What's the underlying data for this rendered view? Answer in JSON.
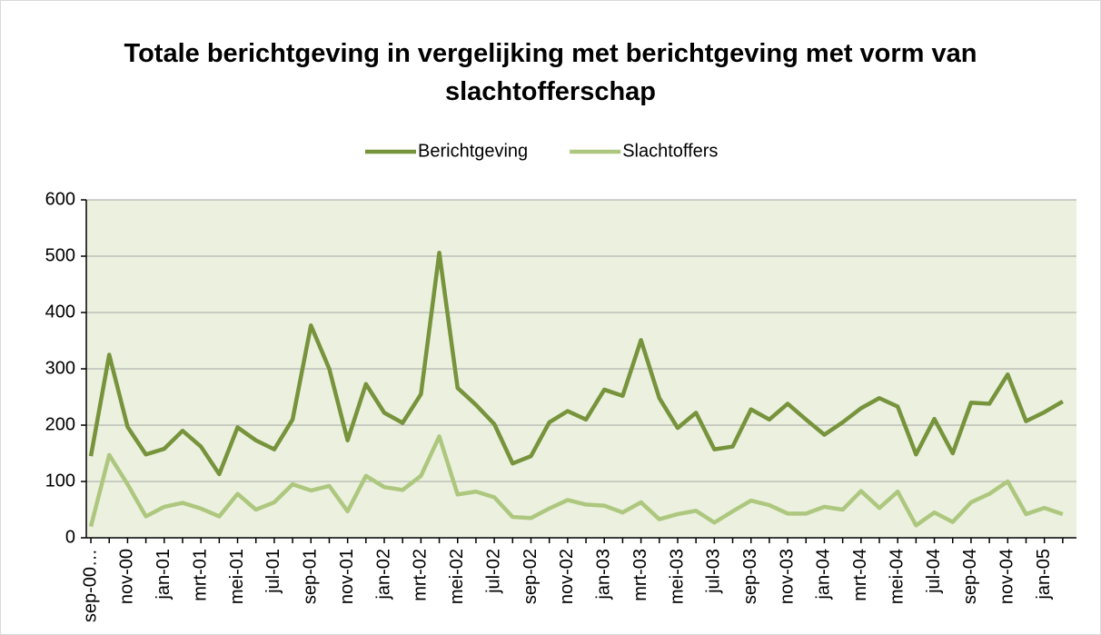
{
  "chart_data": {
    "type": "line",
    "title": "Totale berichtgeving in vergelijking met berichtgeving met vorm van slachtofferschap",
    "categories": [
      "sep-00…",
      null,
      "nov-00",
      null,
      "jan-01",
      null,
      "mrt-01",
      null,
      "mei-01",
      null,
      "jul-01",
      null,
      "sep-01",
      null,
      "nov-01",
      null,
      "jan-02",
      null,
      "mrt-02",
      null,
      "mei-02",
      null,
      "jul-02",
      null,
      "sep-02",
      null,
      "nov-02",
      null,
      "jan-03",
      null,
      "mrt-03",
      null,
      "mei-03",
      null,
      "jul-03",
      null,
      "sep-03",
      null,
      "nov-03",
      null,
      "jan-04",
      null,
      "mrt-04",
      null,
      "mei-04",
      null,
      "jul-04",
      null,
      "sep-04",
      null,
      "nov-04",
      null,
      "jan-05",
      null
    ],
    "series": [
      {
        "name": "Berichtgeving",
        "color": "#77933c",
        "values": [
          145,
          325,
          197,
          148,
          158,
          190,
          162,
          113,
          196,
          173,
          157,
          210,
          377,
          300,
          173,
          273,
          222,
          204,
          255,
          506,
          266,
          236,
          202,
          132,
          145,
          205,
          225,
          210,
          263,
          252,
          351,
          248,
          195,
          222,
          157,
          162,
          228,
          210,
          238,
          210,
          183,
          205,
          230,
          248,
          233,
          148,
          211,
          150,
          240,
          238,
          290,
          207,
          223,
          242
        ]
      },
      {
        "name": "Slachtoffers",
        "color": "#aec77f",
        "values": [
          20,
          147,
          95,
          38,
          55,
          62,
          52,
          38,
          78,
          50,
          63,
          95,
          84,
          92,
          47,
          110,
          90,
          85,
          110,
          180,
          77,
          82,
          72,
          37,
          35,
          52,
          67,
          59,
          57,
          45,
          63,
          33,
          42,
          48,
          27,
          47,
          66,
          58,
          43,
          43,
          55,
          50,
          83,
          53,
          82,
          22,
          45,
          28,
          63,
          78,
          100,
          42,
          53,
          42
        ]
      }
    ],
    "ylim": [
      0,
      600
    ],
    "yticks": [
      0,
      100,
      200,
      300,
      400,
      500,
      600
    ],
    "grid": true,
    "legend": "top",
    "plot_background": "#ebf1de"
  }
}
